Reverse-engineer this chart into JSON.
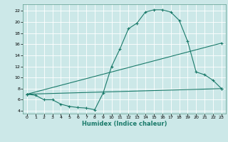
{
  "xlabel": "Humidex (Indice chaleur)",
  "bg_color": "#cce8e8",
  "grid_color": "#ffffff",
  "line_color": "#1a7a6a",
  "xlim": [
    -0.5,
    23.5
  ],
  "ylim": [
    3.5,
    23.2
  ],
  "xticks": [
    0,
    1,
    2,
    3,
    4,
    5,
    6,
    7,
    8,
    9,
    10,
    11,
    12,
    13,
    14,
    15,
    16,
    17,
    18,
    19,
    20,
    21,
    22,
    23
  ],
  "yticks": [
    4,
    6,
    8,
    10,
    12,
    14,
    16,
    18,
    20,
    22
  ],
  "curve1_x": [
    0,
    1,
    2,
    3,
    4,
    5,
    6,
    7,
    8,
    9,
    10,
    11,
    12,
    13,
    14,
    15,
    16,
    17,
    18,
    19,
    20,
    21,
    22,
    23
  ],
  "curve1_y": [
    7.0,
    6.8,
    6.0,
    6.0,
    5.2,
    4.8,
    4.6,
    4.5,
    4.2,
    7.2,
    12.0,
    15.2,
    18.8,
    19.8,
    21.8,
    22.2,
    22.2,
    21.8,
    20.3,
    16.5,
    11.0,
    10.5,
    9.5,
    8.0
  ],
  "curve2_x": [
    0,
    23
  ],
  "curve2_y": [
    7.0,
    16.2
  ],
  "curve3_x": [
    0,
    23
  ],
  "curve3_y": [
    7.0,
    8.0
  ],
  "marker_size": 3,
  "lw": 0.8
}
